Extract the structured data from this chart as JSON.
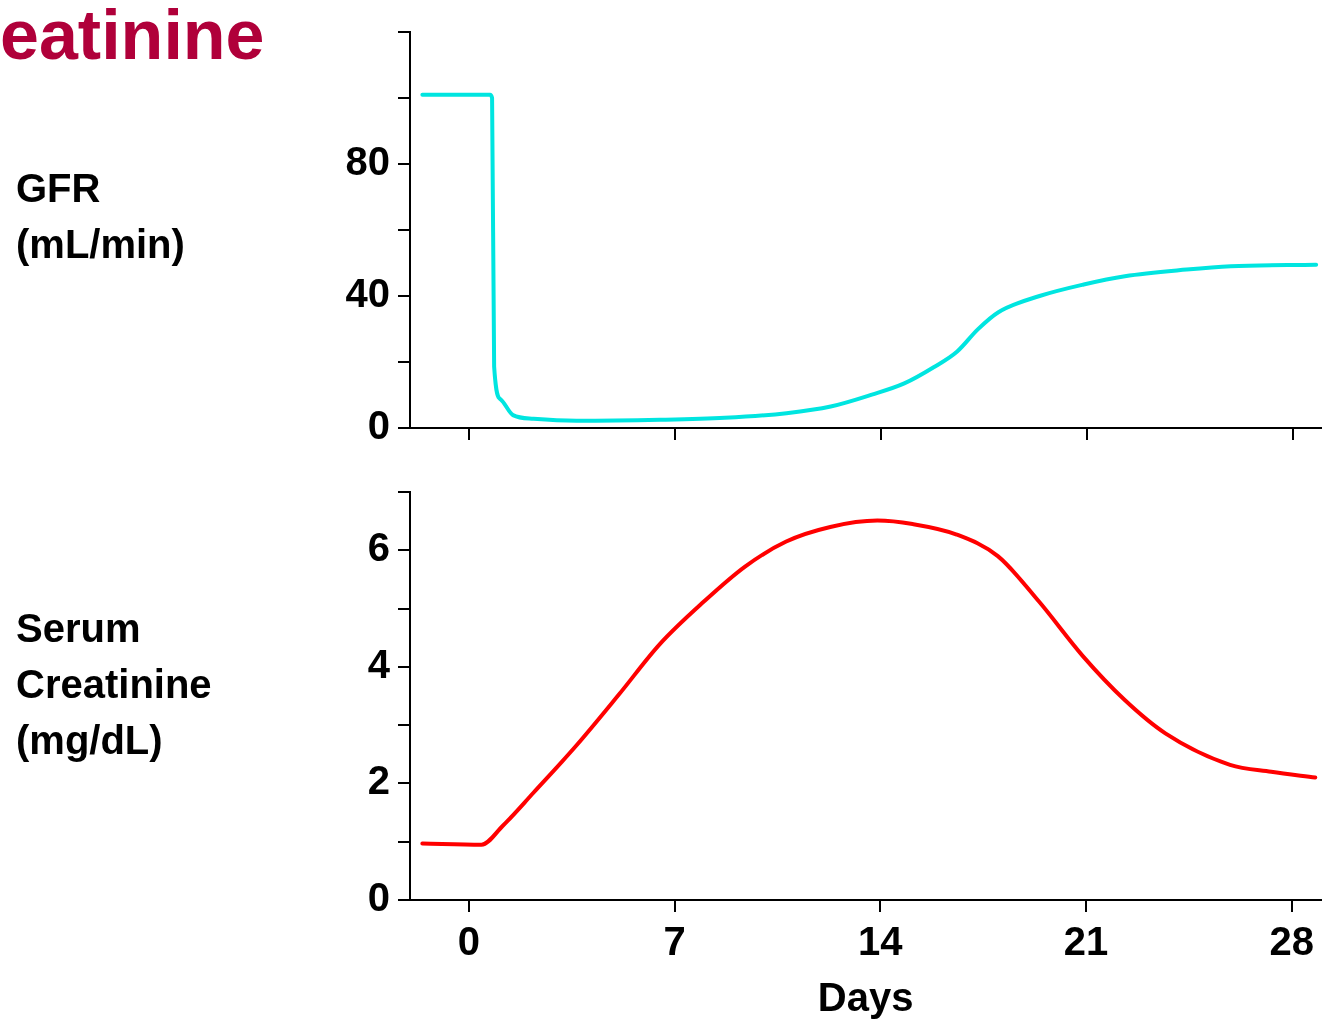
{
  "chart_data": [
    {
      "type": "line",
      "title": "eatinine",
      "ylabel": "GFR\n(mL/min)",
      "marker": "none",
      "tick_labels": "y",
      "xlim": [
        -2,
        29
      ],
      "xticks": [
        0,
        7,
        14,
        21,
        28
      ],
      "ylim": [
        0,
        120
      ],
      "yticks": [
        0,
        {
          "value": 20,
          "label": null
        },
        40,
        {
          "value": 60,
          "label": null
        },
        80,
        {
          "value": 100,
          "label": null
        },
        {
          "value": 120,
          "label": null
        }
      ],
      "series": [
        {
          "color": "#00e5e0",
          "x": [
            -1.58,
            0.72,
            0.79,
            0.86,
            1.08,
            1.5,
            2.2,
            3.66,
            6.5,
            8.7,
            10.8,
            12.3,
            13.7,
            14.8,
            15.8,
            16.6,
            17.3,
            18.0,
            19.4,
            20.9,
            22.3,
            24.4,
            25.9,
            28.8
          ],
          "values": [
            101,
            101,
            100,
            18.6,
            8.7,
            3.9,
            2.8,
            2.2,
            2.5,
            3.1,
            4.5,
            6.5,
            10.1,
            13.5,
            18.4,
            23.2,
            29.9,
            35.1,
            40,
            43.5,
            46,
            48,
            49,
            49.5
          ]
        }
      ]
    },
    {
      "type": "line",
      "ylabel": "Serum\nCreatinine\n(mg/dL)",
      "xlabel": "Days",
      "marker": "none",
      "xlim": [
        -2,
        29
      ],
      "xticks": [
        0,
        7,
        14,
        21,
        28
      ],
      "ylim": [
        0,
        7
      ],
      "yticks": [
        0,
        {
          "value": 1,
          "label": null
        },
        2,
        {
          "value": 3,
          "label": null
        },
        4,
        {
          "value": 5,
          "label": null
        },
        6,
        {
          "value": 7,
          "label": null
        }
      ],
      "series": [
        {
          "color": "#ff0000",
          "x": [
            -1.58,
            0.43,
            1.15,
            2.2,
            3.66,
            5.1,
            6.5,
            8.0,
            9.4,
            10.8,
            12.3,
            13.9,
            15.1,
            16.6,
            18.0,
            19.4,
            20.9,
            22.3,
            23.7,
            25.9,
            27.3,
            28.8
          ],
          "values": [
            0.97,
            0.95,
            1.27,
            1.84,
            2.65,
            3.52,
            4.39,
            5.12,
            5.72,
            6.15,
            6.4,
            6.51,
            6.45,
            6.27,
            5.9,
            5.12,
            4.18,
            3.44,
            2.86,
            2.32,
            2.2,
            2.1
          ]
        }
      ]
    }
  ]
}
